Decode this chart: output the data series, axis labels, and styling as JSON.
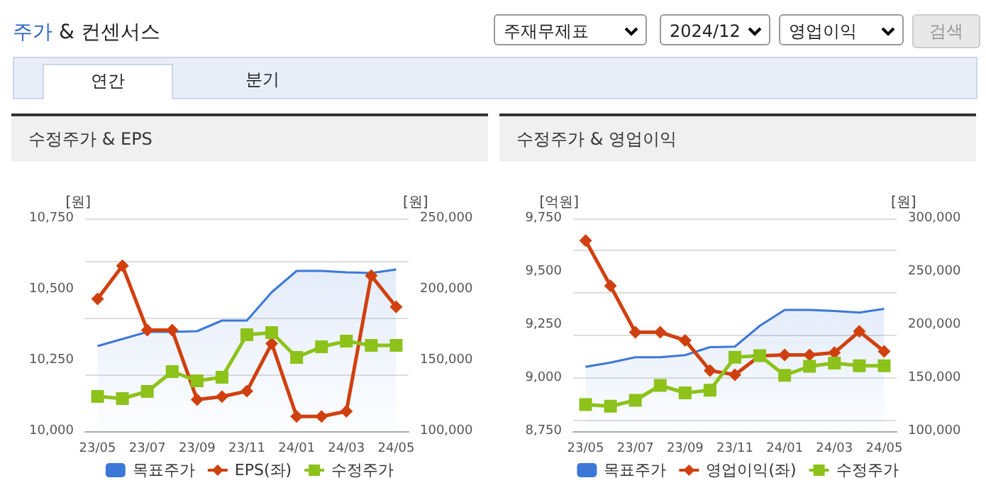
{
  "chart_data": [
    {
      "type": "line",
      "title": "수정주가 & EPS",
      "annotations": [
        "주가 & 컨센서스",
        "주재무제표",
        "2024/12",
        "영업이익",
        "검색",
        "연간",
        "분기"
      ],
      "ylabel": "[원]",
      "y2label": "[원]",
      "categories": [
        "23/05",
        null,
        "23/07",
        null,
        "23/09",
        null,
        "23/11",
        null,
        "24/01",
        null,
        "24/03",
        null,
        "24/05"
      ],
      "ylim": [
        10000,
        10750
      ],
      "yticks": [
        {
          "value": 10000,
          "label": "10,000"
        },
        {
          "value": 10250,
          "label": "10,250"
        },
        {
          "value": 10500,
          "label": "10,500"
        },
        {
          "value": 10750,
          "label": "10,750"
        }
      ],
      "y2lim": [
        100000,
        250000
      ],
      "y2ticks": [
        {
          "value": 100000,
          "label": "100,000"
        },
        {
          "value": 150000,
          "label": "150,000"
        },
        {
          "value": 200000,
          "label": "200,000"
        },
        {
          "value": 250000,
          "label": "250,000"
        }
      ],
      "grid": "y",
      "legend": "bottom",
      "series": [
        {
          "name": "목표주가",
          "type": "area",
          "axis": "y2",
          "color": "#3c78d8",
          "marker": "none",
          "values": [
            160000,
            165000,
            170000,
            170000,
            170500,
            178000,
            178000,
            198000,
            213000,
            213000,
            212000,
            211500,
            214000
          ]
        },
        {
          "name": "EPS(좌)",
          "color": "#d0400f",
          "marker": "diamond",
          "values": [
            10466,
            10583,
            10356,
            10356,
            10111,
            10122,
            10141,
            10309,
            10052,
            10052,
            10070,
            10548,
            10438
          ]
        },
        {
          "name": "수정주가",
          "axis": "y2",
          "color": "#8cc21a",
          "marker": "square",
          "values": [
            124500,
            123000,
            128000,
            142000,
            135500,
            138000,
            168000,
            169500,
            152000,
            159500,
            163500,
            160500,
            160500
          ]
        }
      ]
    },
    {
      "type": "line",
      "title": "수정주가 & 영업이익",
      "ylabel": "[억원]",
      "y2label": "[원]",
      "categories": [
        "23/05",
        null,
        "23/07",
        null,
        "23/09",
        null,
        "23/11",
        null,
        "24/01",
        null,
        "24/03",
        null,
        "24/05"
      ],
      "ylim": [
        8750,
        9750
      ],
      "yticks": [
        {
          "value": 8750,
          "label": "8,750"
        },
        {
          "value": 9000,
          "label": "9,000"
        },
        {
          "value": 9250,
          "label": "9,250"
        },
        {
          "value": 9500,
          "label": "9,500"
        },
        {
          "value": 9750,
          "label": "9,750"
        }
      ],
      "y2lim": [
        100000,
        300000
      ],
      "y2ticks": [
        {
          "value": 100000,
          "label": "100,000"
        },
        {
          "value": 150000,
          "label": "150,000"
        },
        {
          "value": 200000,
          "label": "200,000"
        },
        {
          "value": 250000,
          "label": "250,000"
        },
        {
          "value": 300000,
          "label": "300,000"
        }
      ],
      "grid": "y",
      "legend": "bottom",
      "series": [
        {
          "name": "목표주가",
          "type": "area",
          "axis": "y2",
          "color": "#3c78d8",
          "marker": "none",
          "values": [
            160500,
            164500,
            169500,
            169500,
            171500,
            179000,
            179500,
            199000,
            214000,
            214000,
            213000,
            211500,
            215000
          ]
        },
        {
          "name": "영업이익(좌)",
          "color": "#d0400f",
          "marker": "diamond",
          "values": [
            9646,
            9433,
            9215,
            9215,
            9177,
            9035,
            9015,
            9104,
            9108,
            9108,
            9119,
            9219,
            9125
          ]
        },
        {
          "name": "수정주가",
          "axis": "y2",
          "color": "#8cc21a",
          "marker": "square",
          "values": [
            125000,
            123500,
            129000,
            143000,
            136000,
            138500,
            169500,
            171000,
            152500,
            161000,
            164000,
            161500,
            161500
          ]
        }
      ]
    }
  ]
}
